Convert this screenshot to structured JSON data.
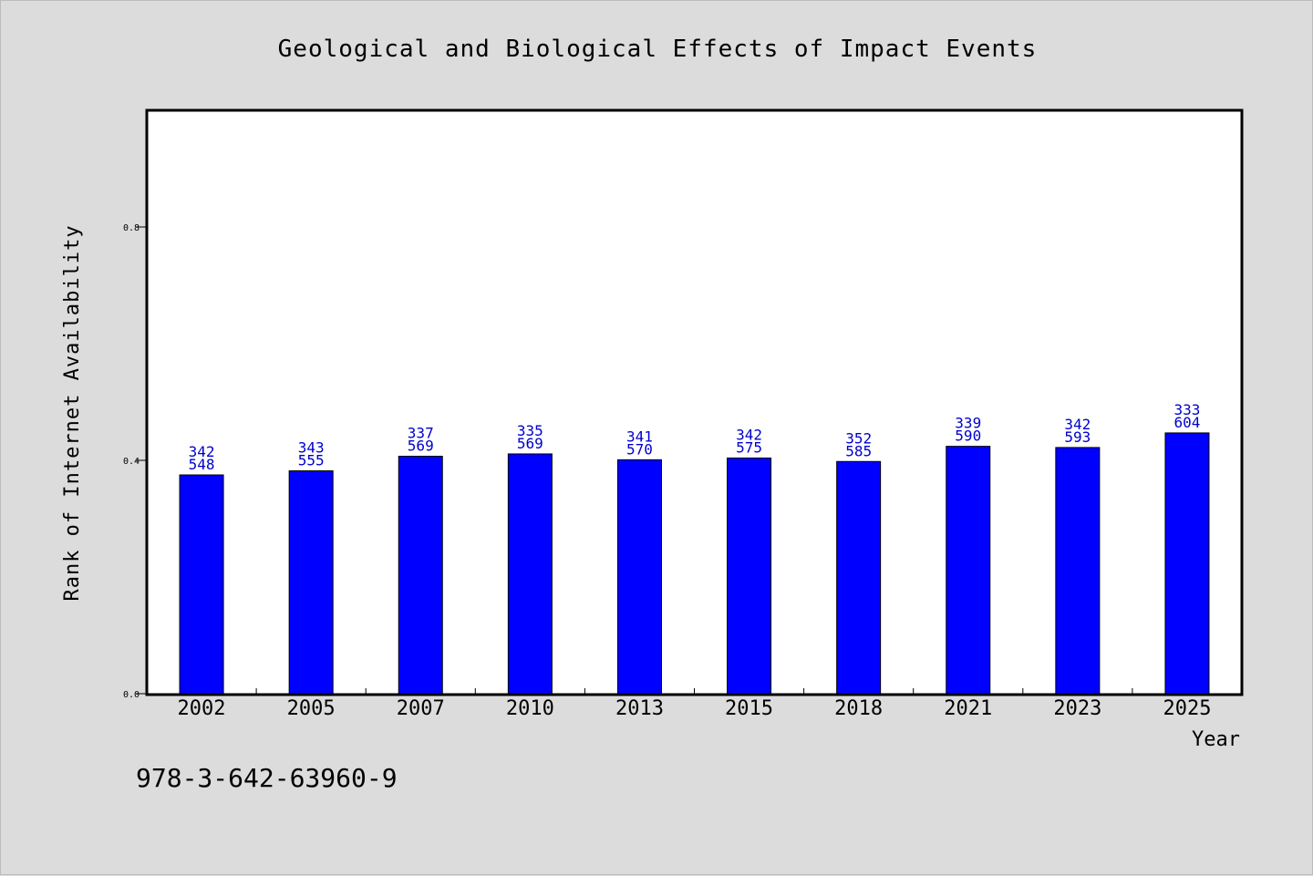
{
  "chart_data": {
    "type": "bar",
    "title": "Geological and Biological Effects of Impact Events",
    "xlabel": "Year",
    "ylabel": "Rank of Internet Availability",
    "categories": [
      "2002",
      "2005",
      "2007",
      "2010",
      "2013",
      "2015",
      "2018",
      "2021",
      "2023",
      "2025"
    ],
    "values": [
      0.375,
      0.382,
      0.407,
      0.411,
      0.401,
      0.404,
      0.398,
      0.424,
      0.422,
      0.447
    ],
    "data_labels": [
      [
        "342",
        "548"
      ],
      [
        "343",
        "555"
      ],
      [
        "337",
        "569"
      ],
      [
        "335",
        "569"
      ],
      [
        "341",
        "570"
      ],
      [
        "342",
        "575"
      ],
      [
        "352",
        "585"
      ],
      [
        "339",
        "590"
      ],
      [
        "342",
        "593"
      ],
      [
        "333",
        "604"
      ]
    ],
    "yticks": [
      "0.0",
      "0.4",
      "0.8"
    ],
    "ytick_values": [
      0.0,
      0.4,
      0.8
    ],
    "ylim": [
      0,
      1.0
    ],
    "grid": false,
    "bar_color": "#0000ff",
    "label_color": "#0000cc",
    "background_color": "#dcdcdc",
    "plot_background": "#ffffff"
  },
  "footer": {
    "isbn": "978-3-642-63960-9"
  }
}
